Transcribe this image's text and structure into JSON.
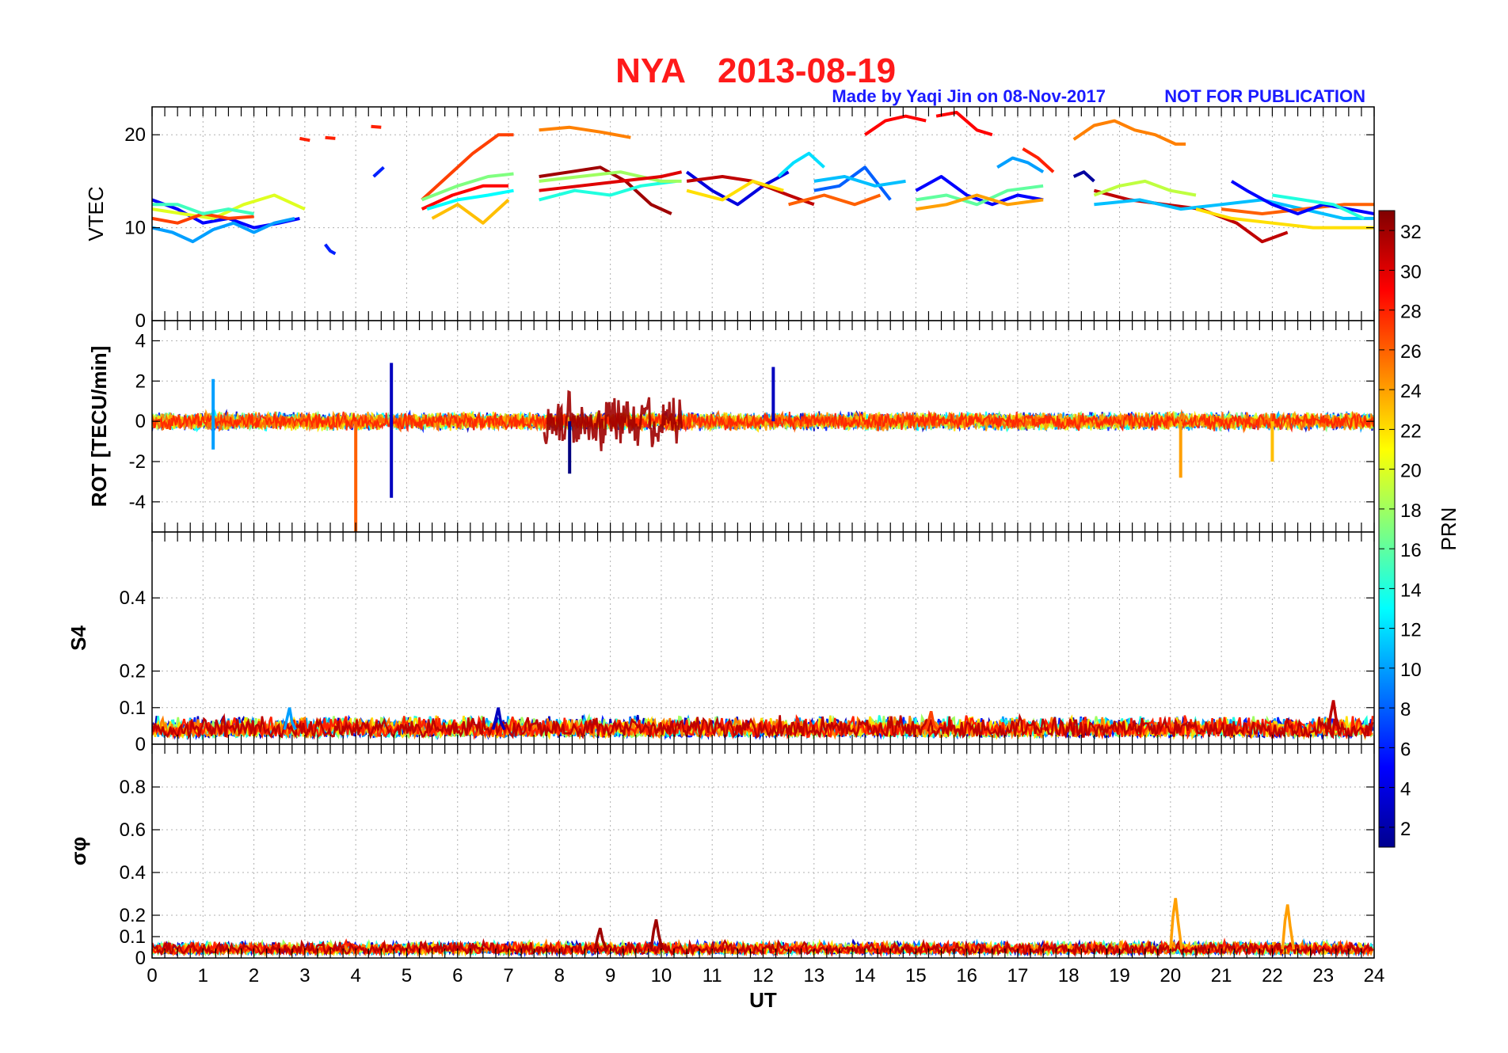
{
  "header": {
    "station": "NYA",
    "date": "2013-08-19",
    "credit": "Made by Yaqi Jin on 08-Nov-2017",
    "notice": "NOT FOR PUBLICATION",
    "title_color": "#ff1a1a",
    "credit_color": "#1a1aff"
  },
  "chart_data": [
    {
      "type": "line",
      "panel": "vtec",
      "ylabel": "VTEC",
      "ylim": [
        0,
        23
      ],
      "yticks": [
        0,
        10,
        20
      ],
      "xlim": [
        0,
        24
      ],
      "grid": true,
      "series_by_prn": true,
      "series": [
        {
          "prn": 5,
          "x": [
            0,
            0.5,
            1,
            1.5,
            2,
            2.5,
            2.9
          ],
          "y": [
            13,
            12,
            10.5,
            11,
            10,
            10.5,
            11
          ]
        },
        {
          "prn": 10,
          "x": [
            0,
            0.4,
            0.8,
            1.2,
            1.6,
            2,
            2.4,
            2.8
          ],
          "y": [
            10,
            9.5,
            8.5,
            9.8,
            10.5,
            9.5,
            10.5,
            11
          ]
        },
        {
          "prn": 20,
          "x": [
            0,
            0.6,
            1.2,
            1.8,
            2.4,
            3.0
          ],
          "y": [
            12,
            11.5,
            11,
            12.5,
            13.5,
            12
          ]
        },
        {
          "prn": 27,
          "x": [
            0,
            0.5,
            1.0,
            1.5,
            2.0
          ],
          "y": [
            11,
            10.5,
            11.5,
            11,
            11.2
          ]
        },
        {
          "prn": 15,
          "x": [
            0,
            0.5,
            1,
            1.5,
            2
          ],
          "y": [
            12.5,
            12.5,
            11.5,
            12,
            11.5
          ]
        },
        {
          "prn": 28,
          "x": [
            2.9,
            3.1
          ],
          "y": [
            19.6,
            19.4
          ]
        },
        {
          "prn": 28,
          "x": [
            3.4,
            3.6
          ],
          "y": [
            19.7,
            19.6
          ]
        },
        {
          "prn": 28,
          "x": [
            4.3,
            4.5
          ],
          "y": [
            20.9,
            20.8
          ]
        },
        {
          "prn": 6,
          "x": [
            3.4,
            3.5,
            3.6
          ],
          "y": [
            8.2,
            7.5,
            7.2
          ]
        },
        {
          "prn": 6,
          "x": [
            4.35,
            4.55
          ],
          "y": [
            15.5,
            16.5
          ]
        },
        {
          "prn": 27,
          "x": [
            5.3,
            5.8,
            6.3,
            6.8,
            7.1
          ],
          "y": [
            13,
            15.5,
            18,
            20,
            20
          ]
        },
        {
          "prn": 17,
          "x": [
            5.3,
            6.0,
            6.6,
            7.1
          ],
          "y": [
            13,
            14.5,
            15.5,
            15.8
          ]
        },
        {
          "prn": 29,
          "x": [
            5.3,
            5.9,
            6.5,
            7.0
          ],
          "y": [
            12,
            13.5,
            14.5,
            14.5
          ]
        },
        {
          "prn": 13,
          "x": [
            5.4,
            6.0,
            6.6,
            7.1
          ],
          "y": [
            12,
            13,
            13.5,
            14
          ]
        },
        {
          "prn": 23,
          "x": [
            5.5,
            6.0,
            6.5,
            7.0
          ],
          "y": [
            11,
            12.5,
            10.5,
            13
          ]
        },
        {
          "prn": 25,
          "x": [
            7.6,
            8.2,
            8.8,
            9.4
          ],
          "y": [
            20.5,
            20.8,
            20.3,
            19.7
          ]
        },
        {
          "prn": 32,
          "x": [
            7.6,
            8.2,
            8.8,
            9.3,
            9.8,
            10.2
          ],
          "y": [
            15.5,
            16,
            16.5,
            15,
            12.5,
            11.5
          ]
        },
        {
          "prn": 14,
          "x": [
            7.6,
            8.3,
            9.0,
            9.6,
            10.3
          ],
          "y": [
            13,
            14,
            13.5,
            14.5,
            15
          ]
        },
        {
          "prn": 18,
          "x": [
            7.6,
            8.4,
            9.2,
            10.0,
            10.4
          ],
          "y": [
            15,
            15.5,
            16,
            15,
            15
          ]
        },
        {
          "prn": 30,
          "x": [
            7.6,
            8.4,
            9.2,
            10.0,
            10.4
          ],
          "y": [
            14,
            14.5,
            15,
            15.5,
            16
          ]
        },
        {
          "prn": 4,
          "x": [
            10.5,
            11.0,
            11.5,
            12.0,
            12.5
          ],
          "y": [
            16,
            14,
            12.5,
            14.5,
            16
          ]
        },
        {
          "prn": 31,
          "x": [
            10.5,
            11.2,
            11.8,
            12.5,
            13.0
          ],
          "y": [
            15,
            15.5,
            15,
            13.5,
            12.5
          ]
        },
        {
          "prn": 22,
          "x": [
            10.5,
            11.2,
            11.8,
            12.4
          ],
          "y": [
            14,
            13,
            15,
            14
          ]
        },
        {
          "prn": 12,
          "x": [
            12.3,
            12.6,
            12.9,
            13.2
          ],
          "y": [
            15.5,
            17,
            18,
            16.5
          ]
        },
        {
          "prn": 26,
          "x": [
            12.5,
            13.2,
            13.8,
            14.3
          ],
          "y": [
            12.5,
            13.5,
            12.5,
            13.5
          ]
        },
        {
          "prn": 8,
          "x": [
            13.0,
            13.5,
            14.0,
            14.5
          ],
          "y": [
            14,
            14.5,
            16.5,
            13
          ]
        },
        {
          "prn": 29,
          "x": [
            14.0,
            14.4,
            14.8,
            15.2
          ],
          "y": [
            20,
            21.5,
            22,
            21.5
          ]
        },
        {
          "prn": 29,
          "x": [
            15.4,
            15.8,
            16.2,
            16.5
          ],
          "y": [
            22,
            22.4,
            20.5,
            20
          ]
        },
        {
          "prn": 11,
          "x": [
            13.0,
            13.6,
            14.2,
            14.8
          ],
          "y": [
            15,
            15.5,
            14.5,
            15
          ]
        },
        {
          "prn": 5,
          "x": [
            15.0,
            15.5,
            16.0,
            16.5,
            17.0,
            17.5
          ],
          "y": [
            14,
            15.5,
            13.5,
            12.5,
            13.5,
            13
          ]
        },
        {
          "prn": 16,
          "x": [
            15.0,
            15.6,
            16.2,
            16.8,
            17.5
          ],
          "y": [
            13,
            13.5,
            12.5,
            14,
            14.5
          ]
        },
        {
          "prn": 24,
          "x": [
            15.0,
            15.6,
            16.2,
            16.8,
            17.5
          ],
          "y": [
            12,
            12.5,
            13.5,
            12.5,
            13
          ]
        },
        {
          "prn": 10,
          "x": [
            16.6,
            16.9,
            17.2,
            17.5
          ],
          "y": [
            16.5,
            17.5,
            17,
            16
          ]
        },
        {
          "prn": 28,
          "x": [
            17.1,
            17.4,
            17.7
          ],
          "y": [
            18.5,
            17.5,
            16
          ]
        },
        {
          "prn": 2,
          "x": [
            18.1,
            18.3,
            18.5
          ],
          "y": [
            15.5,
            16,
            15
          ]
        },
        {
          "prn": 25,
          "x": [
            18.1,
            18.5,
            18.9,
            19.3,
            19.7,
            20.1,
            20.3
          ],
          "y": [
            19.5,
            21,
            21.5,
            20.5,
            20,
            19,
            19
          ]
        },
        {
          "prn": 31,
          "x": [
            18.5,
            19.2,
            19.9,
            20.6,
            21.3,
            21.8,
            22.3
          ],
          "y": [
            14,
            13,
            12.5,
            12,
            10.5,
            8.5,
            9.5
          ]
        },
        {
          "prn": 19,
          "x": [
            18.5,
            19.0,
            19.5,
            20.0,
            20.5
          ],
          "y": [
            13.5,
            14.5,
            15,
            14,
            13.5
          ]
        },
        {
          "prn": 11,
          "x": [
            18.5,
            19.4,
            20.2,
            21.0,
            21.8,
            22.6,
            23.4,
            24
          ],
          "y": [
            12.5,
            13,
            12,
            12.5,
            13,
            12,
            11,
            11
          ]
        },
        {
          "prn": 22,
          "x": [
            20.5,
            21.2,
            22.0,
            22.8,
            23.4,
            24
          ],
          "y": [
            12,
            11,
            10.5,
            10,
            10,
            10
          ]
        },
        {
          "prn": 26,
          "x": [
            21.0,
            21.8,
            22.6,
            23.4,
            24
          ],
          "y": [
            12,
            11.5,
            12,
            12.5,
            12.5
          ]
        },
        {
          "prn": 5,
          "x": [
            21.2,
            21.5,
            22.0,
            22.5,
            23.0,
            23.5,
            24
          ],
          "y": [
            15,
            14,
            12.5,
            11.5,
            12.5,
            12,
            11.5
          ]
        },
        {
          "prn": 14,
          "x": [
            22.0,
            22.6,
            23.2,
            23.8
          ],
          "y": [
            13.5,
            13,
            12.5,
            11
          ]
        }
      ]
    },
    {
      "type": "line",
      "panel": "rot",
      "ylabel": "ROT [TECU/min]",
      "ylim": [
        -5.5,
        5
      ],
      "yticks": [
        -4,
        -2,
        0,
        2,
        4
      ],
      "xlim": [
        0,
        24
      ],
      "grid": true,
      "series_by_prn": true,
      "spikes": [
        {
          "prn": 26,
          "x": 4.0,
          "y": [
            0,
            -5.5
          ]
        },
        {
          "prn": 3,
          "x": 4.7,
          "y": [
            2.9,
            -3.8
          ]
        },
        {
          "prn": 3,
          "x": 12.2,
          "y": [
            2.7,
            0
          ]
        },
        {
          "prn": 1,
          "x": 8.2,
          "y": [
            0,
            -2.6
          ]
        },
        {
          "prn": 24,
          "x": 20.2,
          "y": [
            0,
            -2.8
          ]
        },
        {
          "prn": 10,
          "x": 1.2,
          "y": [
            2.1,
            -1.4
          ]
        },
        {
          "prn": 23,
          "x": 22.0,
          "y": [
            0,
            -2.0
          ]
        }
      ],
      "noise_bands": [
        {
          "x": [
            0,
            24
          ],
          "amp": 0.5
        },
        {
          "x": [
            7.7,
            10.4
          ],
          "amp": 1.6,
          "prn": 32
        }
      ]
    },
    {
      "type": "line",
      "panel": "s4",
      "ylabel": "S4",
      "ylim": [
        0,
        0.58
      ],
      "yticks": [
        0,
        0.1,
        0.2,
        0.4
      ],
      "xlim": [
        0,
        24
      ],
      "grid": true,
      "series_by_prn": true,
      "baseline": [
        0.02,
        0.08
      ],
      "peaks": [
        {
          "prn": 3,
          "x": 6.8,
          "y": 0.1
        },
        {
          "prn": 31,
          "x": 23.2,
          "y": 0.12
        },
        {
          "prn": 10,
          "x": 2.7,
          "y": 0.1
        },
        {
          "prn": 27,
          "x": 15.3,
          "y": 0.09
        }
      ]
    },
    {
      "type": "line",
      "panel": "sigphi",
      "ylabel": "σφ",
      "ylim": [
        0,
        1.0
      ],
      "yticks": [
        0,
        0.1,
        0.2,
        0.4,
        0.6,
        0.8
      ],
      "xlim": [
        0,
        24
      ],
      "xlabel": "UT",
      "xticks": [
        0,
        1,
        2,
        3,
        4,
        5,
        6,
        7,
        8,
        9,
        10,
        11,
        12,
        13,
        14,
        15,
        16,
        17,
        18,
        19,
        20,
        21,
        22,
        23,
        24
      ],
      "grid": true,
      "series_by_prn": true,
      "baseline": [
        0.02,
        0.08
      ],
      "peaks": [
        {
          "prn": 24,
          "x": 20.1,
          "y": 0.28
        },
        {
          "prn": 24,
          "x": 22.3,
          "y": 0.25
        },
        {
          "prn": 32,
          "x": 9.9,
          "y": 0.18
        },
        {
          "prn": 32,
          "x": 8.8,
          "y": 0.14
        }
      ]
    }
  ],
  "colorbar": {
    "label": "PRN",
    "range": [
      1,
      33
    ],
    "ticks": [
      2,
      4,
      6,
      8,
      10,
      12,
      14,
      16,
      18,
      20,
      22,
      24,
      26,
      28,
      30,
      32
    ],
    "colormap": "jet"
  }
}
